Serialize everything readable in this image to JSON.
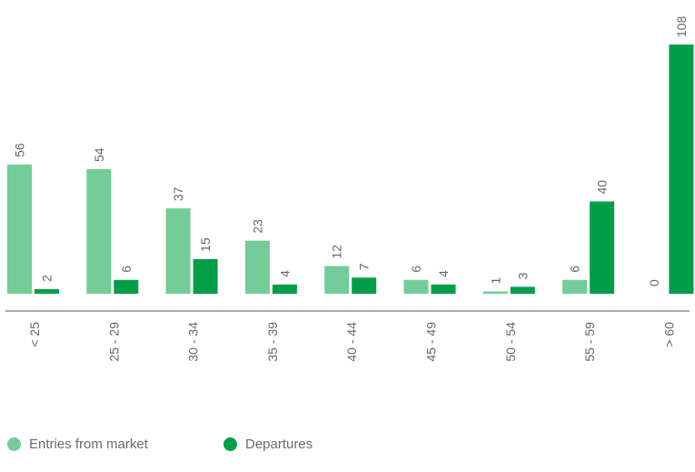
{
  "chart_data": {
    "type": "bar",
    "title": "",
    "xlabel": "",
    "ylabel": "",
    "ylim": [
      0,
      108
    ],
    "grid": false,
    "legend_position": "bottom-left",
    "categories": [
      "< 25",
      "25 - 29",
      "30 - 34",
      "35 - 39",
      "40 - 44",
      "45 - 49",
      "50 - 54",
      "55 - 59",
      "> 60"
    ],
    "series": [
      {
        "name": "Entries from market",
        "color": "#74cc98",
        "values": [
          56,
          54,
          37,
          23,
          12,
          6,
          1,
          6,
          0
        ]
      },
      {
        "name": "Departures",
        "color": "#009e47",
        "values": [
          2,
          6,
          15,
          4,
          7,
          4,
          3,
          40,
          108
        ]
      }
    ]
  },
  "colors": {
    "axis": "#555555",
    "label_text": "#666666"
  }
}
